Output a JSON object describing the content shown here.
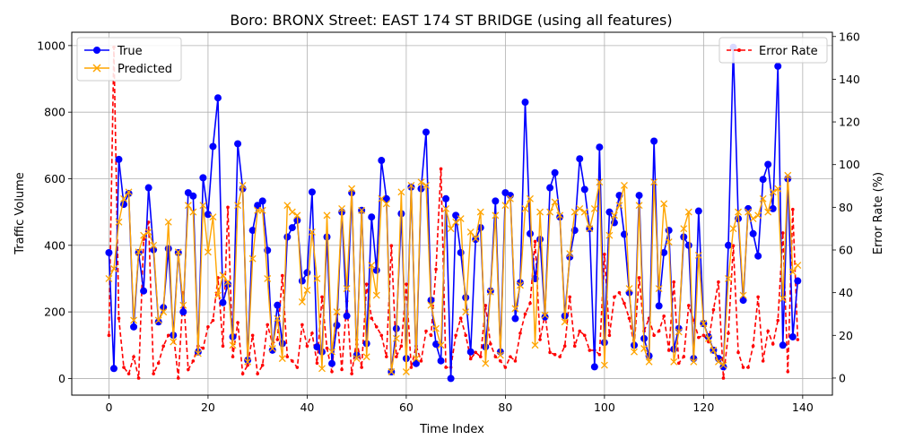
{
  "chart_data": {
    "type": "line",
    "title": "Boro: BRONX Street: EAST 174 ST BRIDGE (using all features)",
    "xlabel": "Time Index",
    "ylabel": "Traffic Volume",
    "y2label": "Error Rate (%)",
    "xlim": [
      -7.5,
      146
    ],
    "ylim": [
      -50,
      1040
    ],
    "y2lim": [
      -8,
      162
    ],
    "xticks": [
      0,
      20,
      40,
      60,
      80,
      100,
      120,
      140
    ],
    "yticks": [
      0,
      200,
      400,
      600,
      800,
      1000
    ],
    "y2ticks": [
      0,
      20,
      40,
      60,
      80,
      100,
      120,
      140,
      160
    ],
    "grid": true,
    "legend_left": {
      "position": "upper-left",
      "entries": [
        "True",
        "Predicted"
      ]
    },
    "legend_right": {
      "position": "upper-right",
      "entries": [
        "Error Rate"
      ]
    },
    "colors": {
      "true": "#0000ff",
      "predicted": "#ffa500",
      "error": "#ff0000"
    },
    "series": [
      {
        "name": "True",
        "axis": "left",
        "values": [
          378,
          30,
          658,
          523,
          556,
          155,
          378,
          263,
          573,
          387,
          170,
          213,
          390,
          130,
          378,
          200,
          558,
          548,
          80,
          603,
          493,
          697,
          843,
          228,
          283,
          125,
          705,
          570,
          55,
          445,
          520,
          533,
          385,
          85,
          220,
          105,
          425,
          453,
          475,
          293,
          318,
          560,
          95,
          80,
          425,
          45,
          160,
          500,
          188,
          558,
          70,
          505,
          105,
          485,
          325,
          655,
          540,
          20,
          150,
          495,
          60,
          575,
          45,
          570,
          740,
          235,
          103,
          53,
          540,
          0,
          490,
          378,
          243,
          80,
          418,
          453,
          95,
          263,
          533,
          80,
          558,
          550,
          180,
          288,
          830,
          435,
          300,
          418,
          185,
          573,
          618,
          485,
          188,
          365,
          445,
          660,
          568,
          450,
          35,
          695,
          108,
          500,
          468,
          550,
          433,
          258,
          100,
          550,
          120,
          68,
          713,
          218,
          378,
          445,
          88,
          150,
          425,
          400,
          60,
          503,
          165,
          125,
          85,
          60,
          35,
          400,
          995,
          480,
          235,
          510,
          435,
          368,
          598,
          643,
          510,
          938,
          100,
          600,
          125,
          293
        ]
      },
      {
        "name": "Predicted",
        "axis": "left",
        "values": [
          300,
          330,
          470,
          540,
          560,
          175,
          380,
          430,
          440,
          400,
          175,
          200,
          470,
          110,
          380,
          220,
          520,
          500,
          75,
          520,
          380,
          485,
          250,
          310,
          290,
          100,
          520,
          580,
          50,
          360,
          505,
          505,
          300,
          90,
          180,
          60,
          520,
          500,
          490,
          230,
          265,
          440,
          300,
          30,
          490,
          80,
          200,
          510,
          270,
          570,
          60,
          505,
          65,
          340,
          250,
          540,
          525,
          20,
          120,
          560,
          20,
          580,
          60,
          590,
          580,
          220,
          150,
          100,
          510,
          450,
          470,
          480,
          200,
          440,
          420,
          500,
          45,
          260,
          490,
          70,
          520,
          540,
          210,
          280,
          510,
          540,
          100,
          500,
          190,
          500,
          530,
          490,
          170,
          375,
          500,
          510,
          500,
          450,
          510,
          590,
          40,
          430,
          490,
          520,
          580,
          270,
          80,
          520,
          90,
          50,
          590,
          270,
          525,
          410,
          50,
          140,
          450,
          500,
          50,
          370,
          165,
          120,
          85,
          50,
          40,
          300,
          450,
          500,
          250,
          500,
          480,
          490,
          540,
          500,
          560,
          570,
          240,
          610,
          320,
          340
        ]
      },
      {
        "name": "Error Rate",
        "axis": "right",
        "values": [
          20,
          155,
          28,
          5,
          2,
          10,
          0,
          65,
          73,
          2,
          7,
          15,
          20,
          21,
          0,
          40,
          4,
          8,
          15,
          14,
          24,
          27,
          47,
          15,
          80,
          10,
          26,
          2,
          6,
          20,
          2,
          6,
          25,
          16,
          18,
          48,
          10,
          8,
          5,
          25,
          15,
          21,
          7,
          38,
          14,
          3,
          30,
          4,
          36,
          2,
          18,
          5,
          44,
          28,
          24,
          20,
          10,
          62,
          10,
          15,
          44,
          5,
          15,
          8,
          22,
          20,
          51,
          98,
          5,
          5,
          20,
          28,
          20,
          9,
          12,
          10,
          34,
          16,
          10,
          8,
          5,
          10,
          8,
          21,
          30,
          35,
          64,
          18,
          30,
          12,
          11,
          10,
          15,
          38,
          15,
          22,
          20,
          13,
          13,
          11,
          58,
          20,
          38,
          40,
          35,
          28,
          15,
          47,
          22,
          28,
          20,
          22,
          29,
          13,
          45,
          7,
          10,
          34,
          27,
          19,
          20,
          17,
          32,
          45,
          0,
          21,
          62,
          12,
          5,
          5,
          15,
          38,
          8,
          22,
          16,
          27,
          68,
          3,
          79,
          18
        ]
      }
    ]
  }
}
